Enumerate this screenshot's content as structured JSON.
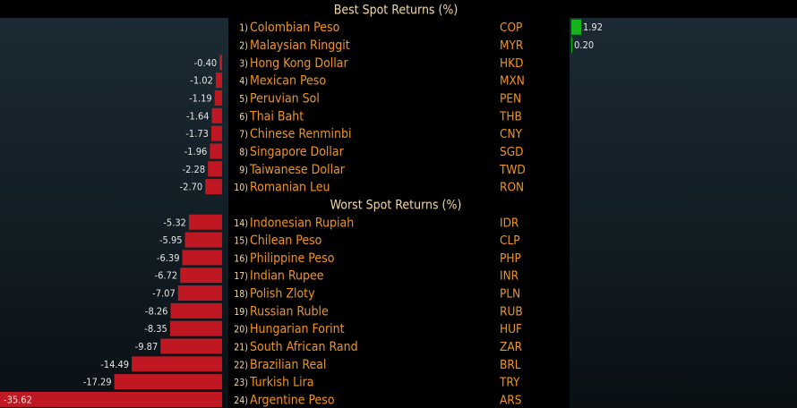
{
  "colors": {
    "negative_bar": "#c01822",
    "positive_bar": "#16b31a",
    "label_orange": "#f0951e",
    "title_cream": "#f2d8a8",
    "panel_bg": "#15222a"
  },
  "chart_data": {
    "type": "bar",
    "sections": [
      {
        "title": "Best Spot Returns (%)",
        "rows": [
          {
            "rank": "1)",
            "name": "Colombian Peso",
            "code": "COP",
            "value": 1.92,
            "label": "1.92"
          },
          {
            "rank": "2)",
            "name": "Malaysian Ringgit",
            "code": "MYR",
            "value": 0.2,
            "label": "0.20"
          },
          {
            "rank": "3)",
            "name": "Hong Kong Dollar",
            "code": "HKD",
            "value": -0.4,
            "label": "-0.40"
          },
          {
            "rank": "4)",
            "name": "Mexican Peso",
            "code": "MXN",
            "value": -1.02,
            "label": "-1.02"
          },
          {
            "rank": "5)",
            "name": "Peruvian Sol",
            "code": "PEN",
            "value": -1.19,
            "label": "-1.19"
          },
          {
            "rank": "6)",
            "name": "Thai Baht",
            "code": "THB",
            "value": -1.64,
            "label": "-1.64"
          },
          {
            "rank": "7)",
            "name": "Chinese Renminbi",
            "code": "CNY",
            "value": -1.73,
            "label": "-1.73"
          },
          {
            "rank": "8)",
            "name": "Singapore Dollar",
            "code": "SGD",
            "value": -1.96,
            "label": "-1.96"
          },
          {
            "rank": "9)",
            "name": "Taiwanese Dollar",
            "code": "TWD",
            "value": -2.28,
            "label": "-2.28"
          },
          {
            "rank": "10)",
            "name": "Romanian Leu",
            "code": "RON",
            "value": -2.7,
            "label": "-2.70"
          }
        ]
      },
      {
        "title": "Worst Spot Returns (%)",
        "rows": [
          {
            "rank": "14)",
            "name": "Indonesian Rupiah",
            "code": "IDR",
            "value": -5.32,
            "label": "-5.32"
          },
          {
            "rank": "15)",
            "name": "Chilean Peso",
            "code": "CLP",
            "value": -5.95,
            "label": "-5.95"
          },
          {
            "rank": "16)",
            "name": "Philippine Peso",
            "code": "PHP",
            "value": -6.39,
            "label": "-6.39"
          },
          {
            "rank": "17)",
            "name": "Indian Rupee",
            "code": "INR",
            "value": -6.72,
            "label": "-6.72"
          },
          {
            "rank": "18)",
            "name": "Polish Zloty",
            "code": "PLN",
            "value": -7.07,
            "label": "-7.07"
          },
          {
            "rank": "19)",
            "name": "Russian Ruble",
            "code": "RUB",
            "value": -8.26,
            "label": "-8.26"
          },
          {
            "rank": "20)",
            "name": "Hungarian Forint",
            "code": "HUF",
            "value": -8.35,
            "label": "-8.35"
          },
          {
            "rank": "21)",
            "name": "South African Rand",
            "code": "ZAR",
            "value": -9.87,
            "label": "-9.87"
          },
          {
            "rank": "22)",
            "name": "Brazilian Real",
            "code": "BRL",
            "value": -14.49,
            "label": "-14.49"
          },
          {
            "rank": "23)",
            "name": "Turkish Lira",
            "code": "TRY",
            "value": -17.29,
            "label": "-17.29"
          },
          {
            "rank": "24)",
            "name": "Argentine Peso",
            "code": "ARS",
            "value": -35.62,
            "label": "-35.62"
          }
        ]
      }
    ]
  }
}
